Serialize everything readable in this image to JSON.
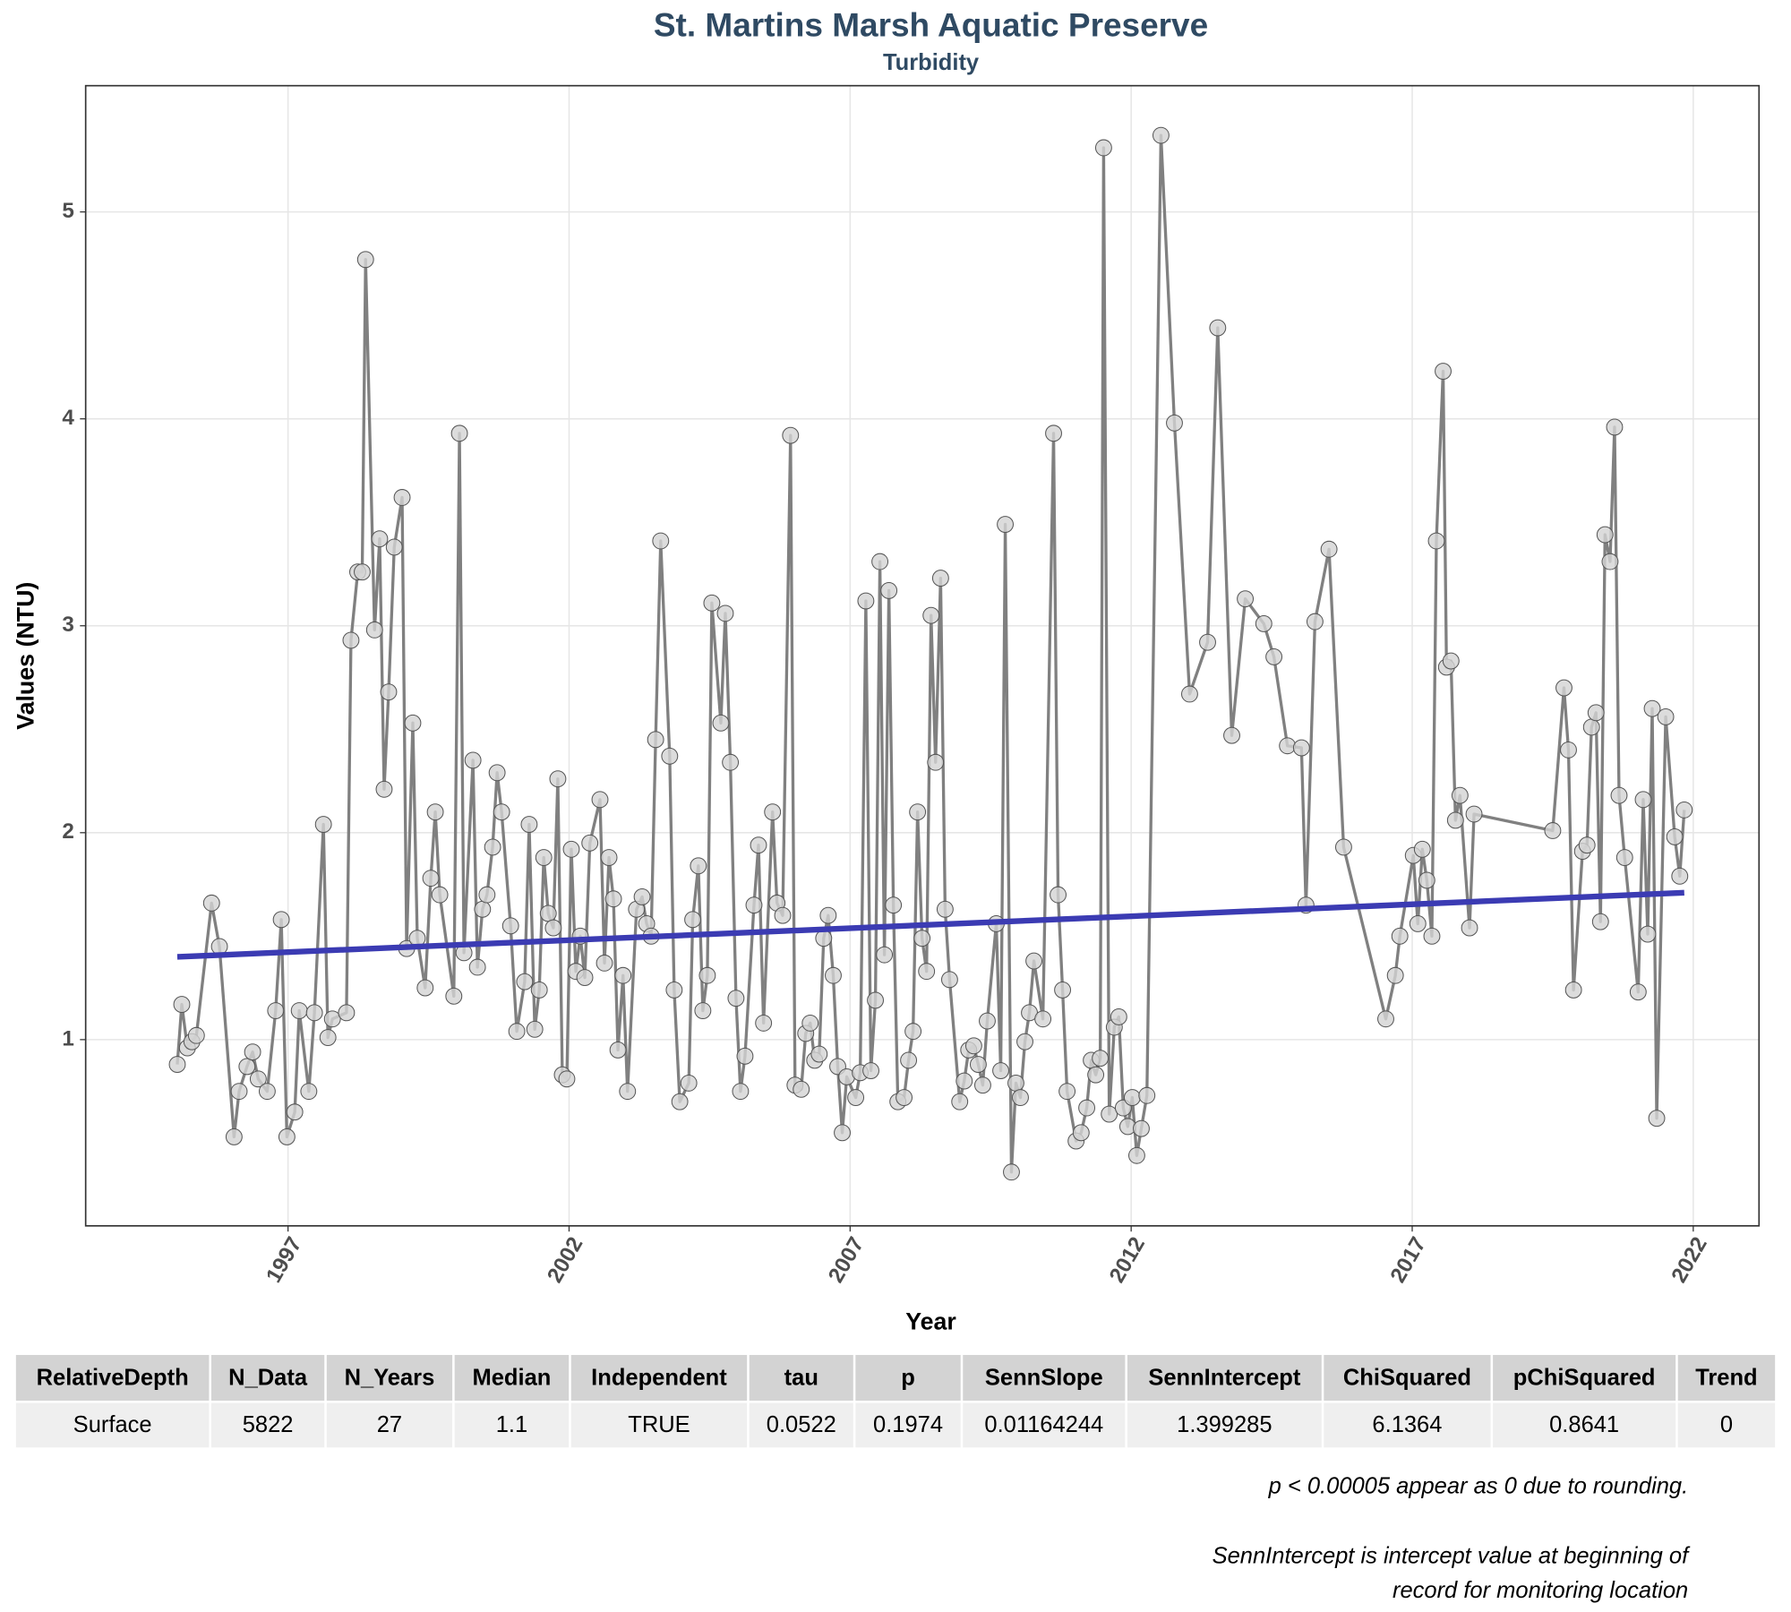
{
  "chart_data": {
    "type": "line",
    "title": "St. Martins Marsh Aquatic Preserve",
    "subtitle": "Turbidity",
    "x_label": "Year",
    "y_label": "Values (NTU)",
    "x": [
      1995.03,
      1995.11,
      1995.21,
      1995.29,
      1995.37,
      1995.64,
      1995.78,
      1996.04,
      1996.13,
      1996.27,
      1996.37,
      1996.47,
      1996.63,
      1996.78,
      1996.88,
      1996.98,
      1997.12,
      1997.2,
      1997.37,
      1997.47,
      1997.63,
      1997.71,
      1997.79,
      1998.04,
      1998.12,
      1998.24,
      1998.32,
      1998.38,
      1998.54,
      1998.63,
      1998.71,
      1998.79,
      1998.89,
      1999.03,
      1999.11,
      1999.22,
      1999.3,
      1999.44,
      1999.54,
      1999.62,
      1999.7,
      1999.95,
      2000.05,
      2000.13,
      2000.29,
      2000.37,
      2000.46,
      2000.54,
      2000.64,
      2000.72,
      2000.8,
      2000.96,
      2001.07,
      2001.21,
      2001.29,
      2001.39,
      2001.47,
      2001.55,
      2001.63,
      2001.72,
      2001.8,
      2001.88,
      2001.96,
      2002.04,
      2002.12,
      2002.2,
      2002.28,
      2002.37,
      2002.55,
      2002.63,
      2002.71,
      2002.79,
      2002.87,
      2002.96,
      2003.04,
      2003.2,
      2003.3,
      2003.38,
      2003.46,
      2003.54,
      2003.63,
      2003.79,
      2003.87,
      2003.97,
      2004.13,
      2004.2,
      2004.3,
      2004.38,
      2004.46,
      2004.54,
      2004.7,
      2004.78,
      2004.87,
      2004.97,
      2005.05,
      2005.13,
      2005.29,
      2005.37,
      2005.46,
      2005.62,
      2005.7,
      2005.8,
      2005.94,
      2006.02,
      2006.13,
      2006.21,
      2006.29,
      2006.37,
      2006.45,
      2006.53,
      2006.61,
      2006.7,
      2006.78,
      2006.86,
      2006.94,
      2007.1,
      2007.18,
      2007.28,
      2007.37,
      2007.45,
      2007.53,
      2007.61,
      2007.69,
      2007.77,
      2007.85,
      2007.96,
      2008.04,
      2008.12,
      2008.2,
      2008.28,
      2008.36,
      2008.44,
      2008.52,
      2008.61,
      2008.69,
      2008.77,
      2008.95,
      2009.03,
      2009.11,
      2009.2,
      2009.28,
      2009.36,
      2009.44,
      2009.6,
      2009.68,
      2009.76,
      2009.87,
      2009.95,
      2010.03,
      2010.11,
      2010.19,
      2010.27,
      2010.43,
      2010.62,
      2010.7,
      2010.78,
      2010.86,
      2011.02,
      2011.11,
      2011.21,
      2011.29,
      2011.37,
      2011.45,
      2011.51,
      2011.61,
      2011.7,
      2011.78,
      2011.86,
      2011.94,
      2012.02,
      2012.1,
      2012.18,
      2012.28,
      2012.53,
      2012.77,
      2013.04,
      2013.36,
      2013.54,
      2013.79,
      2014.03,
      2014.36,
      2014.54,
      2014.78,
      2015.03,
      2015.11,
      2015.27,
      2015.52,
      2015.78,
      2016.53,
      2016.7,
      2016.78,
      2017.02,
      2017.1,
      2017.18,
      2017.26,
      2017.35,
      2017.43,
      2017.55,
      2017.61,
      2017.69,
      2017.77,
      2017.85,
      2018.02,
      2018.1,
      2019.5,
      2019.7,
      2019.78,
      2019.87,
      2020.03,
      2020.11,
      2020.19,
      2020.27,
      2020.35,
      2020.43,
      2020.52,
      2020.6,
      2020.68,
      2020.78,
      2021.02,
      2021.11,
      2021.19,
      2021.27,
      2021.35,
      2021.51,
      2021.67,
      2021.76,
      2021.84
    ],
    "series": [
      {
        "color": "#808080",
        "marker_color": "#d3d3d3",
        "values": [
          0.88,
          1.17,
          0.96,
          0.99,
          1.02,
          1.66,
          1.45,
          0.53,
          0.75,
          0.87,
          0.94,
          0.81,
          0.75,
          1.14,
          1.58,
          0.53,
          0.65,
          1.14,
          0.75,
          1.13,
          2.04,
          1.01,
          1.1,
          1.13,
          2.93,
          3.26,
          3.26,
          4.77,
          2.98,
          3.42,
          2.21,
          2.68,
          3.38,
          3.62,
          1.44,
          2.53,
          1.49,
          1.25,
          1.78,
          2.1,
          1.7,
          1.21,
          3.93,
          1.42,
          2.35,
          1.35,
          1.63,
          1.7,
          1.93,
          2.29,
          2.1,
          1.55,
          1.04,
          1.28,
          2.04,
          1.05,
          1.24,
          1.88,
          1.61,
          1.54,
          2.26,
          0.83,
          0.81,
          1.92,
          1.33,
          1.5,
          1.3,
          1.95,
          2.16,
          1.37,
          1.88,
          1.68,
          0.95,
          1.31,
          0.75,
          1.63,
          1.69,
          1.56,
          1.5,
          2.45,
          3.41,
          2.37,
          1.24,
          0.7,
          0.79,
          1.58,
          1.84,
          1.14,
          1.31,
          3.11,
          2.53,
          3.06,
          2.34,
          1.2,
          0.75,
          0.92,
          1.65,
          1.94,
          1.08,
          2.1,
          1.66,
          1.6,
          3.92,
          0.78,
          0.76,
          1.03,
          1.08,
          0.9,
          0.93,
          1.49,
          1.6,
          1.31,
          0.87,
          0.55,
          0.82,
          0.72,
          0.84,
          3.12,
          0.85,
          1.19,
          3.31,
          1.41,
          3.17,
          1.65,
          0.7,
          0.72,
          0.9,
          1.04,
          2.1,
          1.49,
          1.33,
          3.05,
          2.34,
          3.23,
          1.63,
          1.29,
          0.7,
          0.8,
          0.95,
          0.97,
          0.88,
          0.78,
          1.09,
          1.56,
          0.85,
          3.49,
          0.36,
          0.79,
          0.72,
          0.99,
          1.13,
          1.38,
          1.1,
          3.93,
          1.7,
          1.24,
          0.75,
          0.51,
          0.55,
          0.67,
          0.9,
          0.83,
          0.91,
          5.31,
          0.64,
          1.06,
          1.11,
          0.67,
          0.58,
          0.72,
          0.44,
          0.57,
          0.73,
          5.37,
          3.98,
          2.67,
          2.92,
          4.44,
          2.47,
          3.13,
          3.01,
          2.85,
          2.42,
          2.41,
          1.65,
          3.02,
          3.37,
          1.93,
          1.1,
          1.31,
          1.5,
          1.89,
          1.56,
          1.92,
          1.77,
          1.5,
          3.41,
          4.23,
          2.8,
          2.83,
          2.06,
          2.18,
          1.54,
          2.09,
          2.01,
          2.7,
          2.4,
          1.24,
          1.91,
          1.94,
          2.51,
          2.58,
          1.57,
          3.44,
          3.31,
          3.96,
          2.18,
          1.88,
          1.23,
          2.16,
          1.51,
          2.6,
          0.62,
          2.56,
          1.98,
          1.79,
          2.11
        ]
      }
    ],
    "trend": {
      "x": [
        1995.03,
        2021.84
      ],
      "values": [
        1.4,
        1.71
      ],
      "color": "#3b3bb3"
    },
    "xlim": [
      1993.4,
      2023.17
    ],
    "ylim": [
      0.1,
      5.61
    ],
    "xticks": [
      1997,
      2002,
      2007,
      2012,
      2017,
      2022
    ],
    "yticks": [
      1,
      2,
      3,
      4,
      5
    ],
    "grid": true
  },
  "table": {
    "columns": [
      "RelativeDepth",
      "N_Data",
      "N_Years",
      "Median",
      "Independent",
      "tau",
      "p",
      "SennSlope",
      "SennIntercept",
      "ChiSquared",
      "pChiSquared",
      "Trend"
    ],
    "rows": [
      [
        "Surface",
        5822,
        27,
        1.1,
        "TRUE",
        0.0522,
        0.1974,
        0.01164244,
        1.399285,
        6.1364,
        0.8641,
        0
      ]
    ]
  },
  "notes": [
    "p < 0.00005 appear as 0 due to rounding.",
    "SennIntercept is intercept value at beginning of",
    "record for monitoring location"
  ]
}
